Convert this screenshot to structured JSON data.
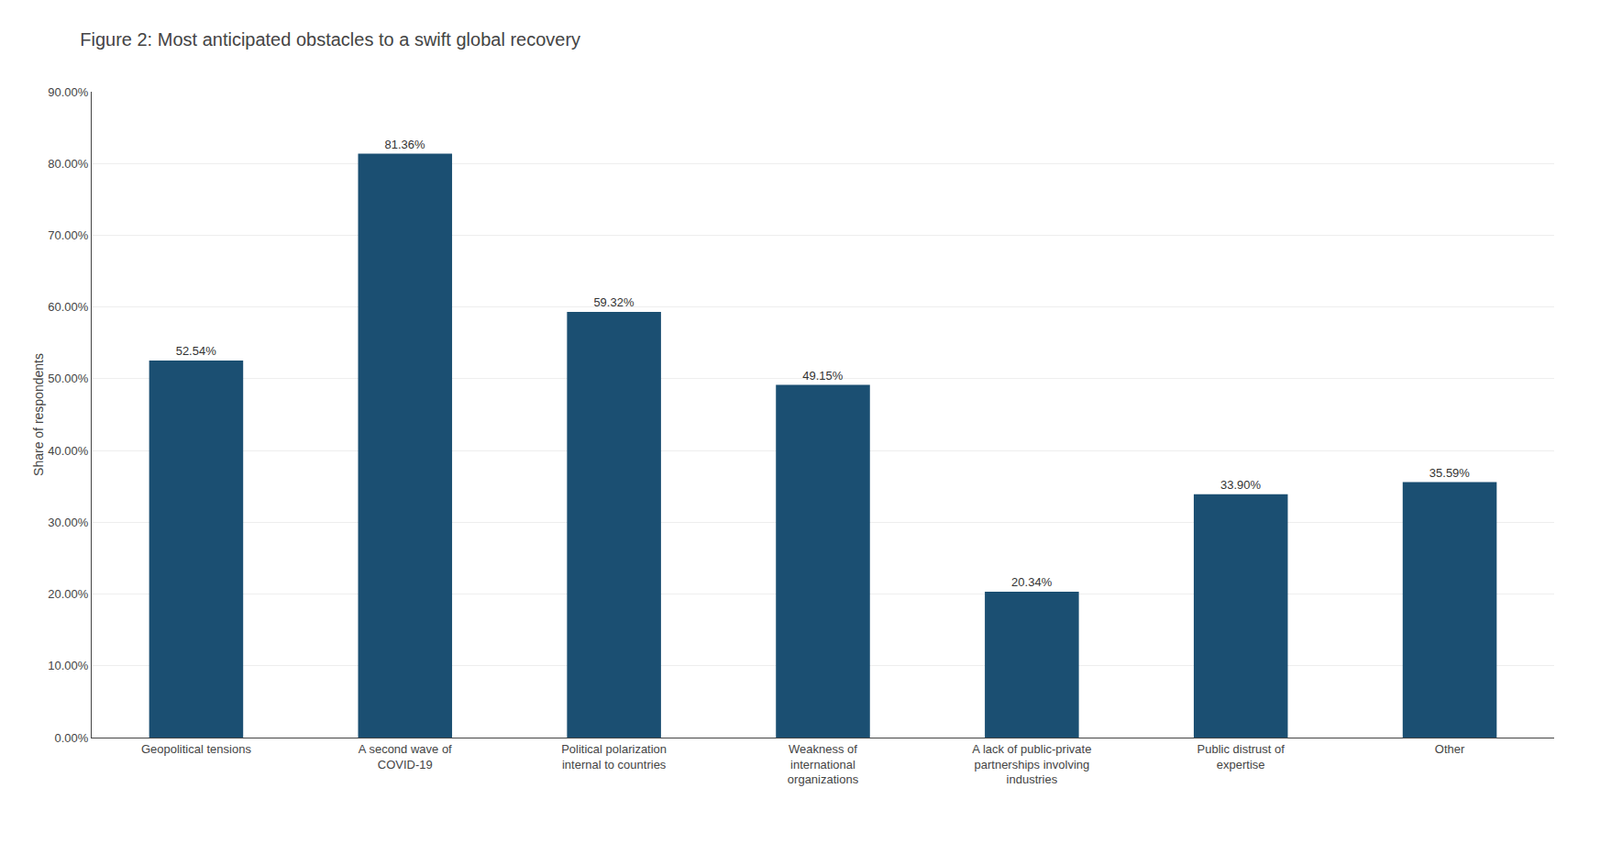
{
  "chart_data": {
    "type": "bar",
    "title": "Figure 2: Most anticipated obstacles to a swift global recovery",
    "ylabel": "Share of respondents",
    "categories": [
      "Geopolitical tensions",
      "A second wave of\nCOVID-19",
      "Political polarization\ninternal to countries",
      "Weakness of\ninternational\norganizations",
      "A lack of public-private\npartnerships involving\nindustries",
      "Public distrust of\nexpertise",
      "Other"
    ],
    "values": [
      52.54,
      81.36,
      59.32,
      49.15,
      20.34,
      33.9,
      35.59
    ],
    "value_labels": [
      "52.54%",
      "81.36%",
      "59.32%",
      "49.15%",
      "20.34%",
      "33.90%",
      "35.59%"
    ],
    "data_labels": true,
    "color": "#1b4f72",
    "ylim": [
      0,
      90
    ],
    "yticks": [
      {
        "value": 0,
        "label": "0.00%"
      },
      {
        "value": 10,
        "label": "10.00%"
      },
      {
        "value": 20,
        "label": "20.00%"
      },
      {
        "value": 30,
        "label": "30.00%"
      },
      {
        "value": 40,
        "label": "40.00%"
      },
      {
        "value": 50,
        "label": "50.00%"
      },
      {
        "value": 60,
        "label": "60.00%"
      },
      {
        "value": 70,
        "label": "70.00%"
      },
      {
        "value": 80,
        "label": "80.00%"
      },
      {
        "value": 90,
        "label": "90.00%"
      }
    ],
    "grid": true
  }
}
